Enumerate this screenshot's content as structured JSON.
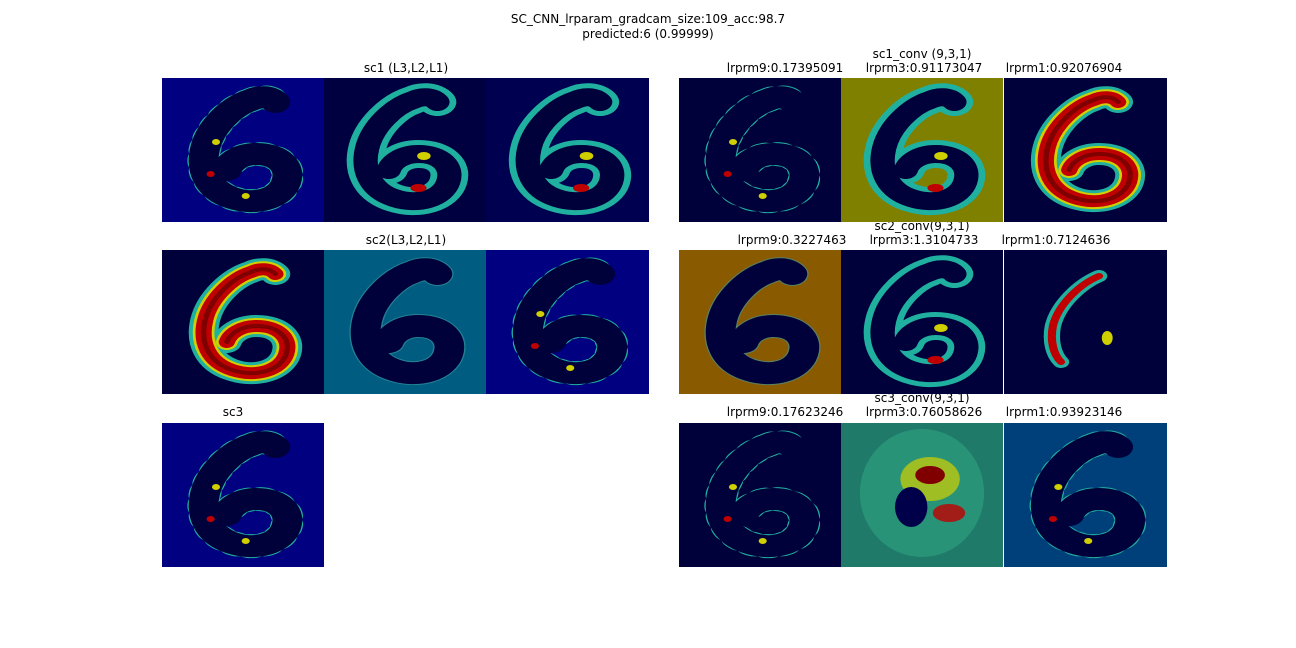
{
  "figure": {
    "title_line1": "SC_CNN_lrparam_gradcam_size:109_acc:98.7",
    "title_line2": "predicted:6 (0.99999)"
  },
  "rows": [
    {
      "left_title": "sc1 (L3,L2,L1)",
      "right_title": "sc1_conv (9,3,1)",
      "right_labels": [
        "lrprm9:0.17395091",
        "lrprm3:0.91173047",
        "lrprm1:0.92076904"
      ]
    },
    {
      "left_title": "sc2(L3,L2,L1)",
      "right_title": "sc2_conv(9,3,1)",
      "right_labels": [
        "lrprm9:0.3227463",
        "lrprm3:1.3104733",
        "lrprm1:0.7124636"
      ]
    },
    {
      "left_title": "sc3",
      "right_title": "sc3_conv(9,3,1)",
      "right_labels": [
        "lrprm9:0.17623246",
        "lrprm3:0.76058626",
        "lrprm1:0.93923146"
      ]
    }
  ],
  "colors": {
    "deep_navy": "#00003a",
    "navy": "#000080",
    "dark_blue": "#00004a",
    "cyan_green": "#20b0a0",
    "yellow": "#d0d000",
    "red": "#c00000",
    "dark_red": "#800000",
    "olive": "#808000",
    "teal": "#005c80",
    "brown_orange": "#8a5a00"
  },
  "panels": [
    {
      "row": 0,
      "side": "left",
      "idx": 0,
      "bg": "#000080",
      "digit": "#00003a",
      "style": "edge"
    },
    {
      "row": 0,
      "side": "left",
      "idx": 1,
      "bg": "#000040",
      "digit": "#00003a",
      "style": "ring"
    },
    {
      "row": 0,
      "side": "left",
      "idx": 2,
      "bg": "#000050",
      "digit": "#00003a",
      "style": "ring"
    },
    {
      "row": 0,
      "side": "right",
      "idx": 0,
      "bg": "#00003a",
      "digit": "#00003a",
      "style": "edge"
    },
    {
      "row": 0,
      "side": "right",
      "idx": 1,
      "bg": "#808000",
      "digit": "#00003a",
      "style": "ring"
    },
    {
      "row": 0,
      "side": "right",
      "idx": 2,
      "bg": "#00003a",
      "digit": "#00003a",
      "style": "hot"
    },
    {
      "row": 1,
      "side": "left",
      "idx": 0,
      "bg": "#00003a",
      "digit": "#00003a",
      "style": "hot"
    },
    {
      "row": 1,
      "side": "left",
      "idx": 1,
      "bg": "#005c80",
      "digit": "#00003a",
      "style": "plain"
    },
    {
      "row": 1,
      "side": "left",
      "idx": 2,
      "bg": "#000080",
      "digit": "#00003a",
      "style": "edge"
    },
    {
      "row": 1,
      "side": "right",
      "idx": 0,
      "bg": "#8a5a00",
      "digit": "#00003a",
      "style": "plain"
    },
    {
      "row": 1,
      "side": "right",
      "idx": 1,
      "bg": "#00003a",
      "digit": "#00003a",
      "style": "ring"
    },
    {
      "row": 1,
      "side": "right",
      "idx": 2,
      "bg": "#00003a",
      "digit": "#00003a",
      "style": "stroke"
    },
    {
      "row": 2,
      "side": "left",
      "idx": 0,
      "bg": "#000080",
      "digit": "#00003a",
      "style": "edge"
    },
    {
      "row": 2,
      "side": "right",
      "idx": 0,
      "bg": "#00003a",
      "digit": "#00003a",
      "style": "edge"
    },
    {
      "row": 2,
      "side": "right",
      "idx": 1,
      "bg": "#1f7a6a",
      "digit": "#1f7a6a",
      "style": "blob"
    },
    {
      "row": 2,
      "side": "right",
      "idx": 2,
      "bg": "#00407a",
      "digit": "#00003a",
      "style": "edge"
    }
  ]
}
